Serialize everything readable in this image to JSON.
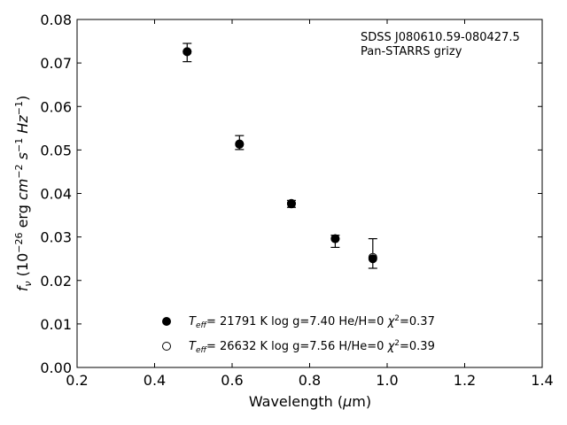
{
  "chart_data": {
    "type": "scatter",
    "annotation": [
      "SDSS J080610.59-080427.5",
      "Pan-STARRS grizy"
    ],
    "xlabel": "Wavelength (μm)",
    "ylabel": "f_ν (10^-26 erg cm^-2 s^-1 Hz^-1)",
    "xlim": [
      0.2,
      1.4
    ],
    "ylim": [
      0.0,
      0.08
    ],
    "xticks": [
      0.2,
      0.4,
      0.6,
      0.8,
      1.0,
      1.2,
      1.4
    ],
    "xtick_labels": [
      "0.2",
      "0.4",
      "0.6",
      "0.8",
      "1.0",
      "1.2",
      "1.4"
    ],
    "yticks": [
      0.0,
      0.01,
      0.02,
      0.03,
      0.04,
      0.05,
      0.06,
      0.07,
      0.08
    ],
    "ytick_labels": [
      "0.00",
      "0.01",
      "0.02",
      "0.03",
      "0.04",
      "0.05",
      "0.06",
      "0.07",
      "0.08"
    ],
    "observed": {
      "x": [
        0.484,
        0.619,
        0.753,
        0.866,
        0.963
      ],
      "y": [
        0.0724,
        0.0517,
        0.0376,
        0.029,
        0.0262
      ],
      "yerr": [
        0.0021,
        0.0016,
        0.0008,
        0.0014,
        0.0034
      ]
    },
    "series": [
      {
        "name": "T_eff= 21791 K  log g=7.40  He/H=0  χ²=0.37",
        "marker": "filled",
        "x": [
          0.484,
          0.619,
          0.753,
          0.866,
          0.963
        ],
        "y": [
          0.0726,
          0.0514,
          0.0376,
          0.0296,
          0.025
        ]
      },
      {
        "name": "T_eff= 26632 K  log g=7.56  H/He=0  χ²=0.39",
        "marker": "open",
        "x": [
          0.484,
          0.619,
          0.753,
          0.866,
          0.963
        ],
        "y": [
          0.0726,
          0.0513,
          0.0377,
          0.0296,
          0.0253
        ]
      }
    ],
    "legend_position": "bottom-center",
    "grid": false,
    "colors": {
      "marker": "#000000",
      "axis": "#000000",
      "background": "#ffffff"
    }
  }
}
